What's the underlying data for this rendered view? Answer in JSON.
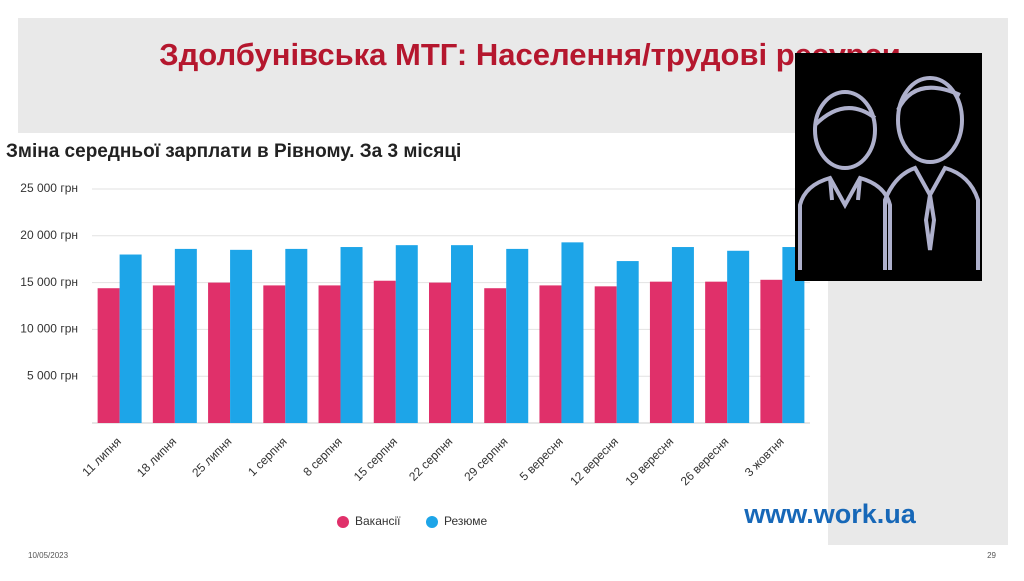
{
  "slide": {
    "title": "Здолбунівська МТГ: Населення/трудові ресурси",
    "date": "10/05/2023",
    "page": "29",
    "website": "www.work.ua"
  },
  "chart_data": {
    "type": "bar",
    "title": "Зміна середньої зарплати в Рівному. За 3 місяці",
    "categories": [
      "11 липня",
      "18 липня",
      "25 липня",
      "1 серпня",
      "8 серпня",
      "15 серпня",
      "22 серпня",
      "29 серпня",
      "5 вересня",
      "12 вересня",
      "19 вересня",
      "26 вересня",
      "3 жовтня"
    ],
    "series": [
      {
        "name": "Вакансії",
        "color": "#e0306a",
        "values": [
          14400,
          14700,
          15000,
          14700,
          14700,
          15200,
          15000,
          14400,
          14700,
          14600,
          15100,
          15100,
          15300
        ]
      },
      {
        "name": "Резюме",
        "color": "#1da5e8",
        "values": [
          18000,
          18600,
          18500,
          18600,
          18800,
          19000,
          19000,
          18600,
          19300,
          17300,
          18800,
          18400,
          18800
        ]
      }
    ],
    "ylim": [
      0,
      25000
    ],
    "yticks": [
      {
        "value": 5000,
        "label": "5 000 грн"
      },
      {
        "value": 10000,
        "label": "10 000 грн"
      },
      {
        "value": 15000,
        "label": "15 000 грн"
      },
      {
        "value": 20000,
        "label": "20 000 грн"
      },
      {
        "value": 25000,
        "label": "25 000 грн"
      }
    ],
    "grid": true
  }
}
